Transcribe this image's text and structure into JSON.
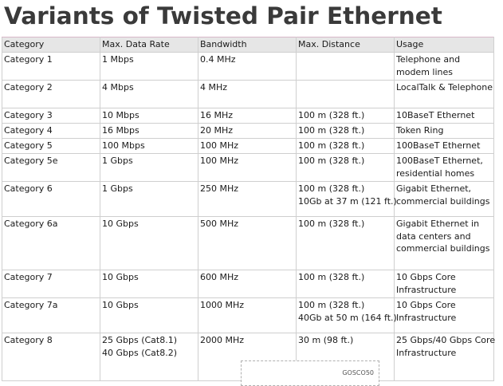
{
  "title": "Variants of Twisted Pair Ethernet",
  "table": {
    "headers": [
      "Category",
      "Max. Data Rate",
      "Bandwidth",
      "Max. Distance",
      "Usage"
    ],
    "rows": [
      {
        "h": 35,
        "cells": [
          [
            "Category 1"
          ],
          [
            "1 Mbps"
          ],
          [
            "0.4 MHz"
          ],
          [
            ""
          ],
          [
            "Telephone and",
            "modem lines"
          ]
        ]
      },
      {
        "h": 35,
        "cells": [
          [
            "Category 2"
          ],
          [
            "4 Mbps"
          ],
          [
            "4 MHz"
          ],
          [
            ""
          ],
          [
            "LocalTalk & Telephone"
          ]
        ]
      },
      {
        "h": 19,
        "cells": [
          [
            "Category 3"
          ],
          [
            "10 Mbps"
          ],
          [
            "16 MHz"
          ],
          [
            "100 m (328 ft.)"
          ],
          [
            "10BaseT Ethernet"
          ]
        ]
      },
      {
        "h": 19,
        "cells": [
          [
            "Category 4"
          ],
          [
            "16 Mbps"
          ],
          [
            "20 MHz"
          ],
          [
            "100 m (328 ft.)"
          ],
          [
            "Token Ring"
          ]
        ]
      },
      {
        "h": 19,
        "cells": [
          [
            "Category 5"
          ],
          [
            "100 Mbps"
          ],
          [
            "100 MHz"
          ],
          [
            "100 m (328 ft.)"
          ],
          [
            "100BaseT Ethernet"
          ]
        ]
      },
      {
        "h": 35,
        "cells": [
          [
            "Category 5e"
          ],
          [
            "1 Gbps"
          ],
          [
            "100 MHz"
          ],
          [
            "100 m (328 ft.)"
          ],
          [
            "100BaseT Ethernet,",
            "residential homes"
          ]
        ]
      },
      {
        "h": 44,
        "cells": [
          [
            "Category 6"
          ],
          [
            "1 Gbps"
          ],
          [
            "250 MHz"
          ],
          [
            "100 m (328 ft.)",
            "10Gb at 37 m (121 ft.)"
          ],
          [
            "Gigabit Ethernet,",
            "commercial buildings"
          ]
        ]
      },
      {
        "h": 67,
        "cells": [
          [
            "Category 6a"
          ],
          [
            "10 Gbps"
          ],
          [
            "500 MHz"
          ],
          [
            "100 m (328 ft.)"
          ],
          [
            "Gigabit Ethernet in",
            "data centers and",
            "commercial buildings"
          ]
        ]
      },
      {
        "h": 35,
        "cells": [
          [
            "Category 7"
          ],
          [
            "10 Gbps"
          ],
          [
            "600 MHz"
          ],
          [
            "100 m (328 ft.)"
          ],
          [
            "10 Gbps Core",
            "Infrastructure"
          ]
        ]
      },
      {
        "h": 44,
        "cells": [
          [
            "Category 7a"
          ],
          [
            "10 Gbps"
          ],
          [
            "1000 MHz"
          ],
          [
            "100 m (328 ft.)",
            "40Gb at 50 m (164 ft.)"
          ],
          [
            "10 Gbps Core",
            "Infrastructure"
          ]
        ]
      },
      {
        "h": 60,
        "cells": [
          [
            "Category 8"
          ],
          [
            "25 Gbps (Cat8.1)",
            "40 Gbps (Cat8.2)"
          ],
          [
            "2000 MHz"
          ],
          [
            "30 m (98 ft.)"
          ],
          [
            "25 Gbps/40 Gbps Core",
            "Infrastructure"
          ]
        ]
      }
    ]
  },
  "footer_snippet": "GOSCO50"
}
